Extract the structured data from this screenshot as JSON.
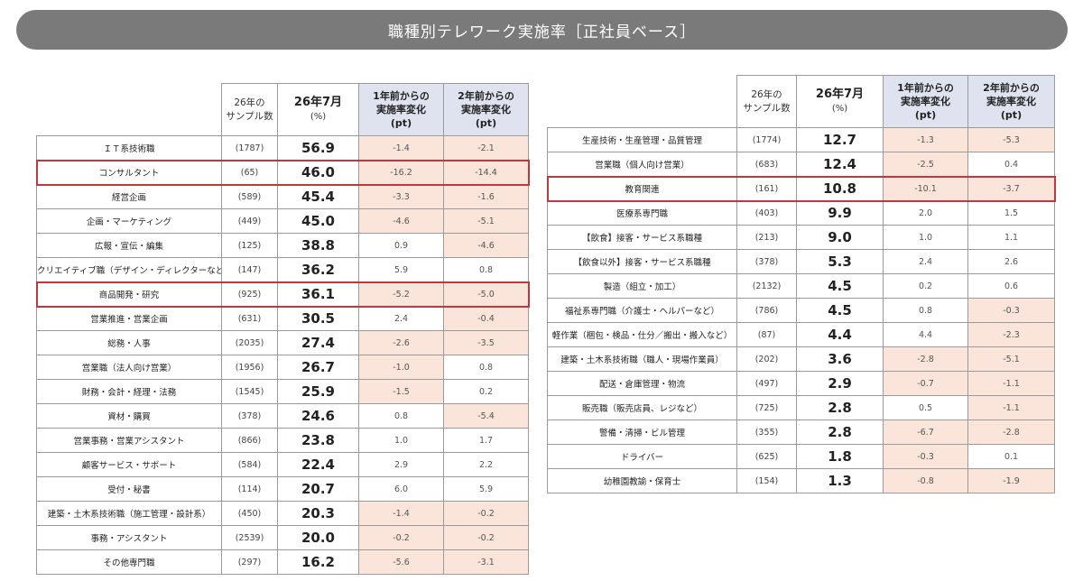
{
  "title": "職種別テレワーク実施率［正社員ベース］",
  "colors": {
    "negative_cell": "#fbe4d9",
    "header_fill": "#dfe3ef",
    "highlight_border": "#c0383b",
    "title_bar": "#7a7a7a"
  },
  "headers": {
    "sample": [
      "26年の",
      "サンプル数"
    ],
    "main": "26年7月",
    "main_unit": "(%)",
    "chg1": [
      "1年前からの",
      "実施率変化",
      "(pt)"
    ],
    "chg2": [
      "2年前からの",
      "実施率変化",
      "(pt)"
    ]
  },
  "chart_data": {
    "type": "table",
    "title": "職種別テレワーク実施率［正社員ベース］",
    "columns": [
      "職種",
      "26年のサンプル数",
      "26年7月(%)",
      "1年前からの実施率変化(pt)",
      "2年前からの実施率変化(pt)"
    ],
    "tables": [
      {
        "rows": [
          {
            "cat": "ＩＴ系技術職",
            "n": "(1787)",
            "rate": "56.9",
            "d1": "-1.4",
            "d2": "-2.1",
            "highlight": false
          },
          {
            "cat": "コンサルタント",
            "n": "(65)",
            "rate": "46.0",
            "d1": "-16.2",
            "d2": "-14.4",
            "highlight": true
          },
          {
            "cat": "経営企画",
            "n": "(589)",
            "rate": "45.4",
            "d1": "-3.3",
            "d2": "-1.6",
            "highlight": false
          },
          {
            "cat": "企画・マーケティング",
            "n": "(449)",
            "rate": "45.0",
            "d1": "-4.6",
            "d2": "-5.1",
            "highlight": false
          },
          {
            "cat": "広報・宣伝・編集",
            "n": "(125)",
            "rate": "38.8",
            "d1": "0.9",
            "d2": "-4.6",
            "highlight": false
          },
          {
            "cat": "クリエイティブ職（デザイン・ディレクターなど）",
            "n": "(147)",
            "rate": "36.2",
            "d1": "5.9",
            "d2": "0.8",
            "highlight": false
          },
          {
            "cat": "商品開発・研究",
            "n": "(925)",
            "rate": "36.1",
            "d1": "-5.2",
            "d2": "-5.0",
            "highlight": true
          },
          {
            "cat": "営業推進・営業企画",
            "n": "(631)",
            "rate": "30.5",
            "d1": "2.4",
            "d2": "-0.4",
            "highlight": false
          },
          {
            "cat": "総務・人事",
            "n": "(2035)",
            "rate": "27.4",
            "d1": "-2.6",
            "d2": "-3.5",
            "highlight": false
          },
          {
            "cat": "営業職（法人向け営業）",
            "n": "(1956)",
            "rate": "26.7",
            "d1": "-1.0",
            "d2": "0.8",
            "highlight": false
          },
          {
            "cat": "財務・会計・経理・法務",
            "n": "(1545)",
            "rate": "25.9",
            "d1": "-1.5",
            "d2": "0.2",
            "highlight": false
          },
          {
            "cat": "資材・購買",
            "n": "(378)",
            "rate": "24.6",
            "d1": "0.8",
            "d2": "-5.4",
            "highlight": false
          },
          {
            "cat": "営業事務・営業アシスタント",
            "n": "(866)",
            "rate": "23.8",
            "d1": "1.0",
            "d2": "1.7",
            "highlight": false
          },
          {
            "cat": "顧客サービス・サポート",
            "n": "(584)",
            "rate": "22.4",
            "d1": "2.9",
            "d2": "2.2",
            "highlight": false
          },
          {
            "cat": "受付・秘書",
            "n": "(114)",
            "rate": "20.7",
            "d1": "6.0",
            "d2": "5.9",
            "highlight": false
          },
          {
            "cat": "建築・土木系技術職（施工管理・設計系）",
            "n": "(450)",
            "rate": "20.3",
            "d1": "-1.4",
            "d2": "-0.2",
            "highlight": false
          },
          {
            "cat": "事務・アシスタント",
            "n": "(2539)",
            "rate": "20.0",
            "d1": "-0.2",
            "d2": "-0.2",
            "highlight": false
          },
          {
            "cat": "その他専門職",
            "n": "(297)",
            "rate": "16.2",
            "d1": "-5.6",
            "d2": "-3.1",
            "highlight": false
          }
        ]
      },
      {
        "rows": [
          {
            "cat": "生産技術・生産管理・品質管理",
            "n": "(1774)",
            "rate": "12.7",
            "d1": "-1.3",
            "d2": "-5.3",
            "highlight": false
          },
          {
            "cat": "営業職（個人向け営業）",
            "n": "(683)",
            "rate": "12.4",
            "d1": "-2.5",
            "d2": "0.4",
            "highlight": false
          },
          {
            "cat": "教育関連",
            "n": "(161)",
            "rate": "10.8",
            "d1": "-10.1",
            "d2": "-3.7",
            "highlight": true
          },
          {
            "cat": "医療系専門職",
            "n": "(403)",
            "rate": "9.9",
            "d1": "2.0",
            "d2": "1.5",
            "highlight": false
          },
          {
            "cat": "【飲食】接客・サービス系職種",
            "n": "(213)",
            "rate": "9.0",
            "d1": "1.0",
            "d2": "1.1",
            "highlight": false
          },
          {
            "cat": "【飲食以外】接客・サービス系職種",
            "n": "(378)",
            "rate": "5.3",
            "d1": "2.4",
            "d2": "2.6",
            "highlight": false
          },
          {
            "cat": "製造（組立・加工）",
            "n": "(2132)",
            "rate": "4.5",
            "d1": "0.2",
            "d2": "0.6",
            "highlight": false
          },
          {
            "cat": "福祉系専門職（介護士・ヘルパーなど）",
            "n": "(786)",
            "rate": "4.5",
            "d1": "0.8",
            "d2": "-0.3",
            "highlight": false
          },
          {
            "cat": "軽作業（梱包・検品・仕分／搬出・搬入など）",
            "n": "(87)",
            "rate": "4.4",
            "d1": "4.4",
            "d2": "-2.3",
            "highlight": false
          },
          {
            "cat": "建築・土木系技術職（職人・現場作業員）",
            "n": "(202)",
            "rate": "3.6",
            "d1": "-2.8",
            "d2": "-5.1",
            "highlight": false
          },
          {
            "cat": "配送・倉庫管理・物流",
            "n": "(497)",
            "rate": "2.9",
            "d1": "-0.7",
            "d2": "-1.1",
            "highlight": false
          },
          {
            "cat": "販売職（販売店員、レジなど）",
            "n": "(725)",
            "rate": "2.8",
            "d1": "0.5",
            "d2": "-1.1",
            "highlight": false
          },
          {
            "cat": "警備・清掃・ビル管理",
            "n": "(355)",
            "rate": "2.8",
            "d1": "-6.7",
            "d2": "-2.8",
            "highlight": false
          },
          {
            "cat": "ドライバー",
            "n": "(625)",
            "rate": "1.8",
            "d1": "-0.3",
            "d2": "0.1",
            "highlight": false
          },
          {
            "cat": "幼稚園教諭・保育士",
            "n": "(154)",
            "rate": "1.3",
            "d1": "-0.8",
            "d2": "-1.9",
            "highlight": false
          }
        ]
      }
    ]
  }
}
